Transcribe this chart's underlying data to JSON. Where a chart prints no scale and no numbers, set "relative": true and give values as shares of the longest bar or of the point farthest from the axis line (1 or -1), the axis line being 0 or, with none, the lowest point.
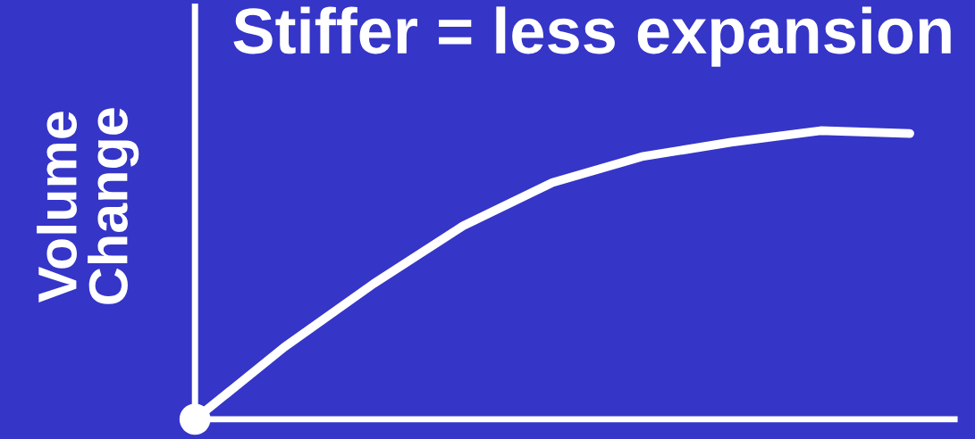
{
  "chart_data": {
    "type": "line",
    "title": "Stiffer = less expansion",
    "ylabel": "Volume\nChange",
    "relative": true,
    "categories": [
      null,
      null,
      null,
      null,
      null,
      null,
      null,
      null,
      null
    ],
    "series": [
      {
        "color": "#ffffff",
        "values": [
          0,
          0.25,
          0.47,
          0.67,
          0.82,
          0.91,
          0.96,
          1,
          0.99
        ]
      }
    ],
    "tick_labels": false
  }
}
